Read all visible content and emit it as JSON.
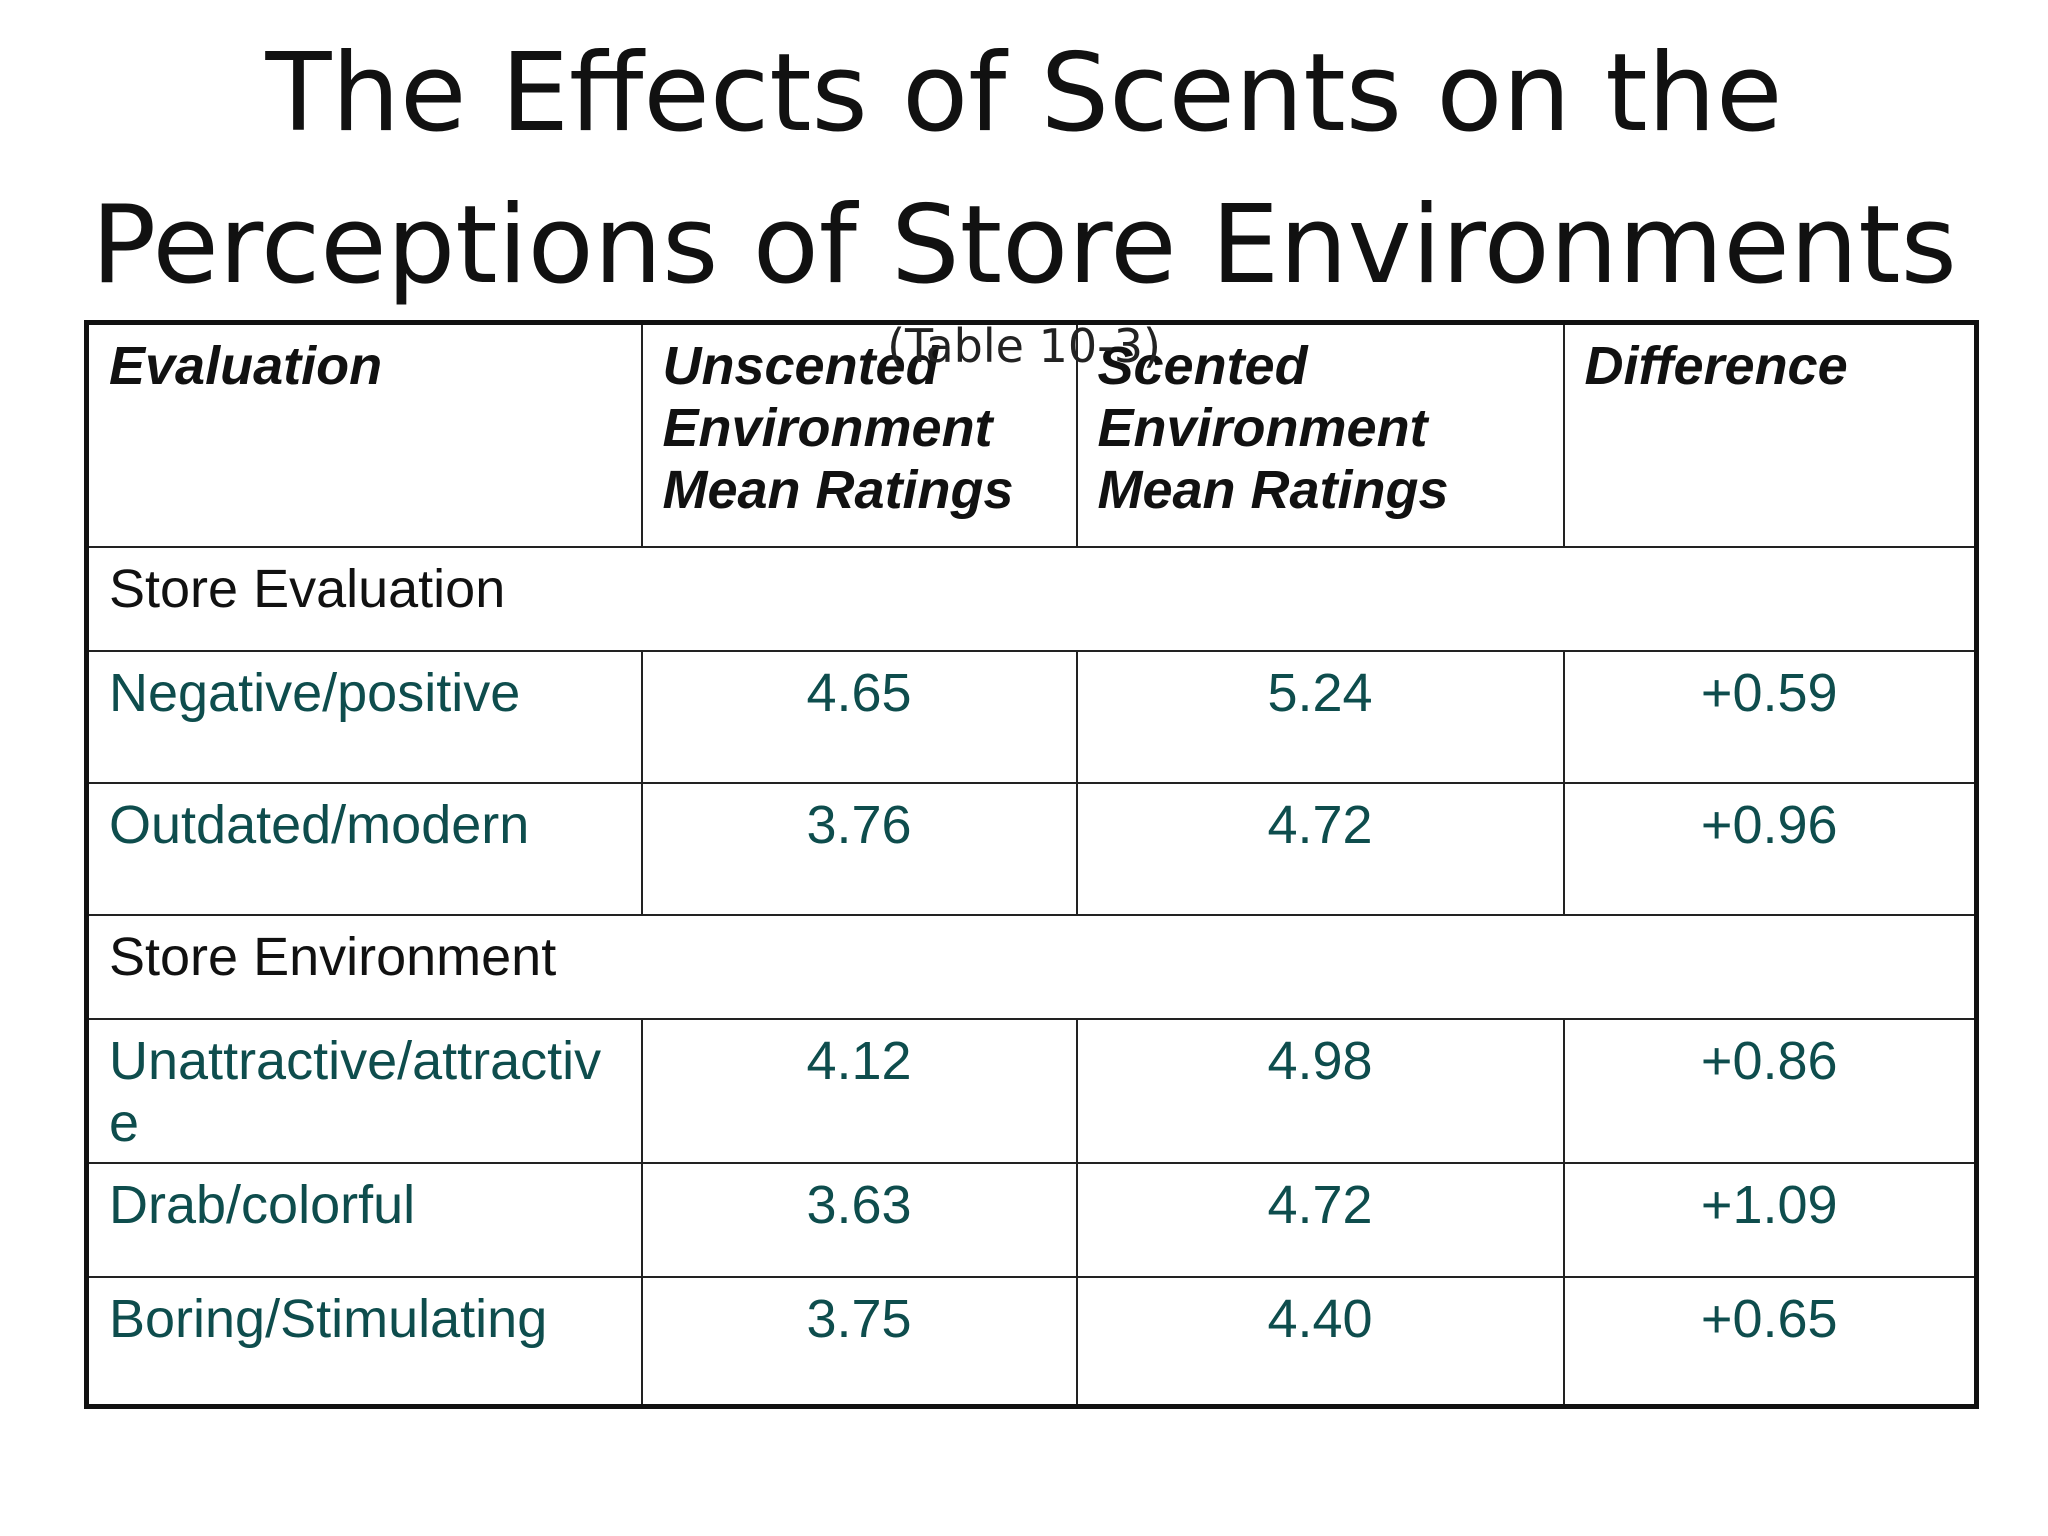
{
  "slide": {
    "title_line1": "The Effects of Scents on the",
    "title_line2": "Perceptions of Store Environments",
    "subtitle": "(Table 10-3)"
  },
  "table": {
    "headers": [
      "Evaluation",
      "Unscented Environment Mean Ratings",
      "Scented Environment Mean Ratings",
      "Difference"
    ],
    "sections": [
      {
        "name": "Store Evaluation",
        "rows": [
          {
            "label": "Negative/positive",
            "unscented": "4.65",
            "scented": "5.24",
            "difference": "+0.59"
          },
          {
            "label": "Outdated/modern",
            "unscented": "3.76",
            "scented": "4.72",
            "difference": "+0.96"
          }
        ]
      },
      {
        "name": "Store Environment",
        "rows": [
          {
            "label": "Unattractive/attractive",
            "unscented": "4.12",
            "scented": "4.98",
            "difference": "+0.86"
          },
          {
            "label": "Drab/colorful",
            "unscented": "3.63",
            "scented": "4.72",
            "difference": "+1.09"
          },
          {
            "label": "Boring/Stimulating",
            "unscented": "3.75",
            "scented": "4.40",
            "difference": "+0.65"
          }
        ]
      }
    ]
  },
  "colors": {
    "label_text": "#0e4d4d",
    "header_text": "#111111",
    "border": "#111111"
  }
}
